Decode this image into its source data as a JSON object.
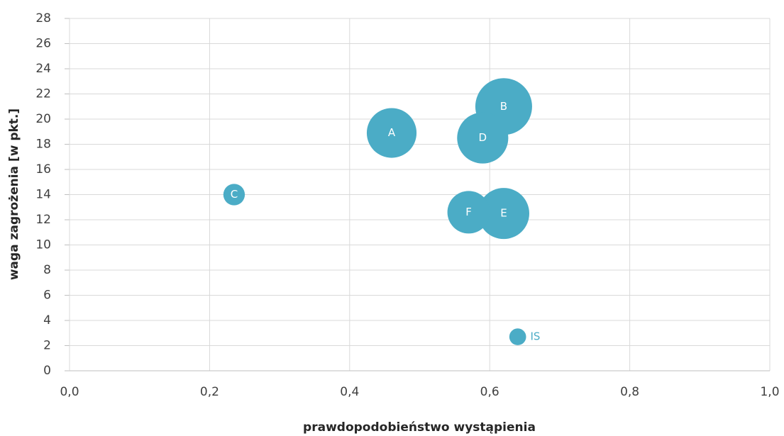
{
  "chart_data": {
    "type": "bubble",
    "xlabel": "prawdopodobieństwo wystąpienia",
    "ylabel": "waga zagrożenia [w pkt.]",
    "labels": [
      "A",
      "B",
      "C",
      "D",
      "E",
      "F",
      "IS"
    ],
    "x": [
      0.46,
      0.62,
      0.235,
      0.59,
      0.62,
      0.57,
      0.64
    ],
    "y": [
      18.9,
      21.0,
      14.0,
      18.5,
      12.5,
      12.6,
      2.7
    ],
    "sizes": [
      12.3,
      16,
      2.3,
      13,
      13,
      9,
      1.4
    ],
    "color": "#4bacc6",
    "xlim": [
      0,
      1
    ],
    "xticks": [
      {
        "value": 0,
        "label": "0,0"
      },
      {
        "value": 0.2,
        "label": "0,2"
      },
      {
        "value": 0.4,
        "label": "0,4"
      },
      {
        "value": 0.6,
        "label": "0,6"
      },
      {
        "value": 0.8,
        "label": "0,8"
      },
      {
        "value": 1,
        "label": "1,0"
      }
    ],
    "ylim": [
      0,
      28
    ],
    "yticks": [
      0,
      2,
      4,
      6,
      8,
      10,
      12,
      14,
      16,
      18,
      20,
      22,
      24,
      26,
      28
    ],
    "grid": true
  }
}
